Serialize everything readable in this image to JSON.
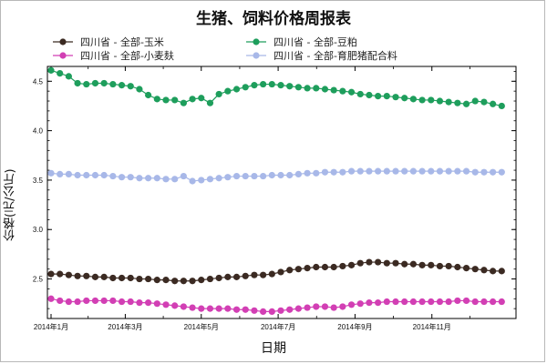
{
  "chart_data": {
    "type": "line",
    "title": "生猪、饲料价格周报表",
    "xlabel": "日期",
    "ylabel": "价格(元/公斤)",
    "ylim": [
      2.1,
      4.65
    ],
    "yticks": [
      "2.5",
      "3.0",
      "3.5",
      "4.0",
      "4.5"
    ],
    "xlim": [
      0,
      52
    ],
    "xticks": [
      {
        "label": "2014年1月",
        "x": 0
      },
      {
        "label": "2014年3月",
        "x": 8.4
      },
      {
        "label": "2014年5月",
        "x": 17
      },
      {
        "label": "2014年7月",
        "x": 25.7
      },
      {
        "label": "2014年9月",
        "x": 34.4
      },
      {
        "label": "2014年11月",
        "x": 43.1
      }
    ],
    "x": [
      0,
      1,
      2,
      3,
      4,
      5,
      6,
      7,
      8,
      9,
      10,
      11,
      12,
      13,
      14,
      15,
      16,
      17,
      18,
      19,
      20,
      21,
      22,
      23,
      24,
      25,
      26,
      27,
      28,
      29,
      30,
      31,
      32,
      33,
      34,
      35,
      36,
      37,
      38,
      39,
      40,
      41,
      42,
      43,
      44,
      45,
      46,
      47,
      48,
      49,
      50,
      51
    ],
    "series": [
      {
        "name": "四川省 - 全部-玉米",
        "color": "#3b2a22",
        "values": [
          2.55,
          2.55,
          2.54,
          2.53,
          2.53,
          2.52,
          2.52,
          2.51,
          2.51,
          2.51,
          2.5,
          2.5,
          2.49,
          2.49,
          2.48,
          2.48,
          2.48,
          2.49,
          2.5,
          2.51,
          2.52,
          2.52,
          2.53,
          2.54,
          2.54,
          2.55,
          2.57,
          2.59,
          2.6,
          2.61,
          2.62,
          2.62,
          2.62,
          2.63,
          2.64,
          2.66,
          2.67,
          2.67,
          2.66,
          2.66,
          2.65,
          2.65,
          2.64,
          2.64,
          2.63,
          2.63,
          2.62,
          2.61,
          2.6,
          2.59,
          2.58,
          2.58
        ]
      },
      {
        "name": "四川省 - 全部-豆粕",
        "color": "#1e9e5c",
        "values": [
          4.61,
          4.58,
          4.55,
          4.48,
          4.47,
          4.48,
          4.48,
          4.47,
          4.46,
          4.45,
          4.42,
          4.36,
          4.32,
          4.31,
          4.31,
          4.28,
          4.32,
          4.33,
          4.28,
          4.37,
          4.4,
          4.42,
          4.44,
          4.46,
          4.47,
          4.47,
          4.46,
          4.45,
          4.44,
          4.43,
          4.43,
          4.42,
          4.41,
          4.4,
          4.39,
          4.37,
          4.36,
          4.35,
          4.35,
          4.34,
          4.33,
          4.32,
          4.31,
          4.31,
          4.3,
          4.29,
          4.28,
          4.27,
          4.3,
          4.29,
          4.27,
          4.25
        ]
      },
      {
        "name": "四川省 - 全部-小麦麸",
        "color": "#d23fb4",
        "values": [
          2.3,
          2.28,
          2.27,
          2.27,
          2.28,
          2.28,
          2.28,
          2.28,
          2.27,
          2.27,
          2.26,
          2.26,
          2.25,
          2.24,
          2.23,
          2.22,
          2.21,
          2.2,
          2.2,
          2.2,
          2.2,
          2.19,
          2.19,
          2.18,
          2.17,
          2.17,
          2.18,
          2.19,
          2.2,
          2.21,
          2.22,
          2.22,
          2.21,
          2.22,
          2.24,
          2.25,
          2.26,
          2.26,
          2.27,
          2.27,
          2.27,
          2.27,
          2.27,
          2.27,
          2.27,
          2.27,
          2.28,
          2.28,
          2.27,
          2.27,
          2.27,
          2.27
        ]
      },
      {
        "name": "四川省 - 全部-育肥猪配合料",
        "color": "#a8b8e8",
        "values": [
          3.57,
          3.56,
          3.56,
          3.55,
          3.55,
          3.55,
          3.55,
          3.54,
          3.53,
          3.53,
          3.52,
          3.52,
          3.52,
          3.51,
          3.51,
          3.54,
          3.49,
          3.5,
          3.51,
          3.52,
          3.53,
          3.54,
          3.54,
          3.54,
          3.54,
          3.55,
          3.55,
          3.55,
          3.56,
          3.57,
          3.57,
          3.58,
          3.58,
          3.58,
          3.59,
          3.59,
          3.59,
          3.59,
          3.59,
          3.59,
          3.59,
          3.59,
          3.59,
          3.59,
          3.59,
          3.59,
          3.59,
          3.59,
          3.58,
          3.58,
          3.58,
          3.58
        ]
      }
    ]
  }
}
